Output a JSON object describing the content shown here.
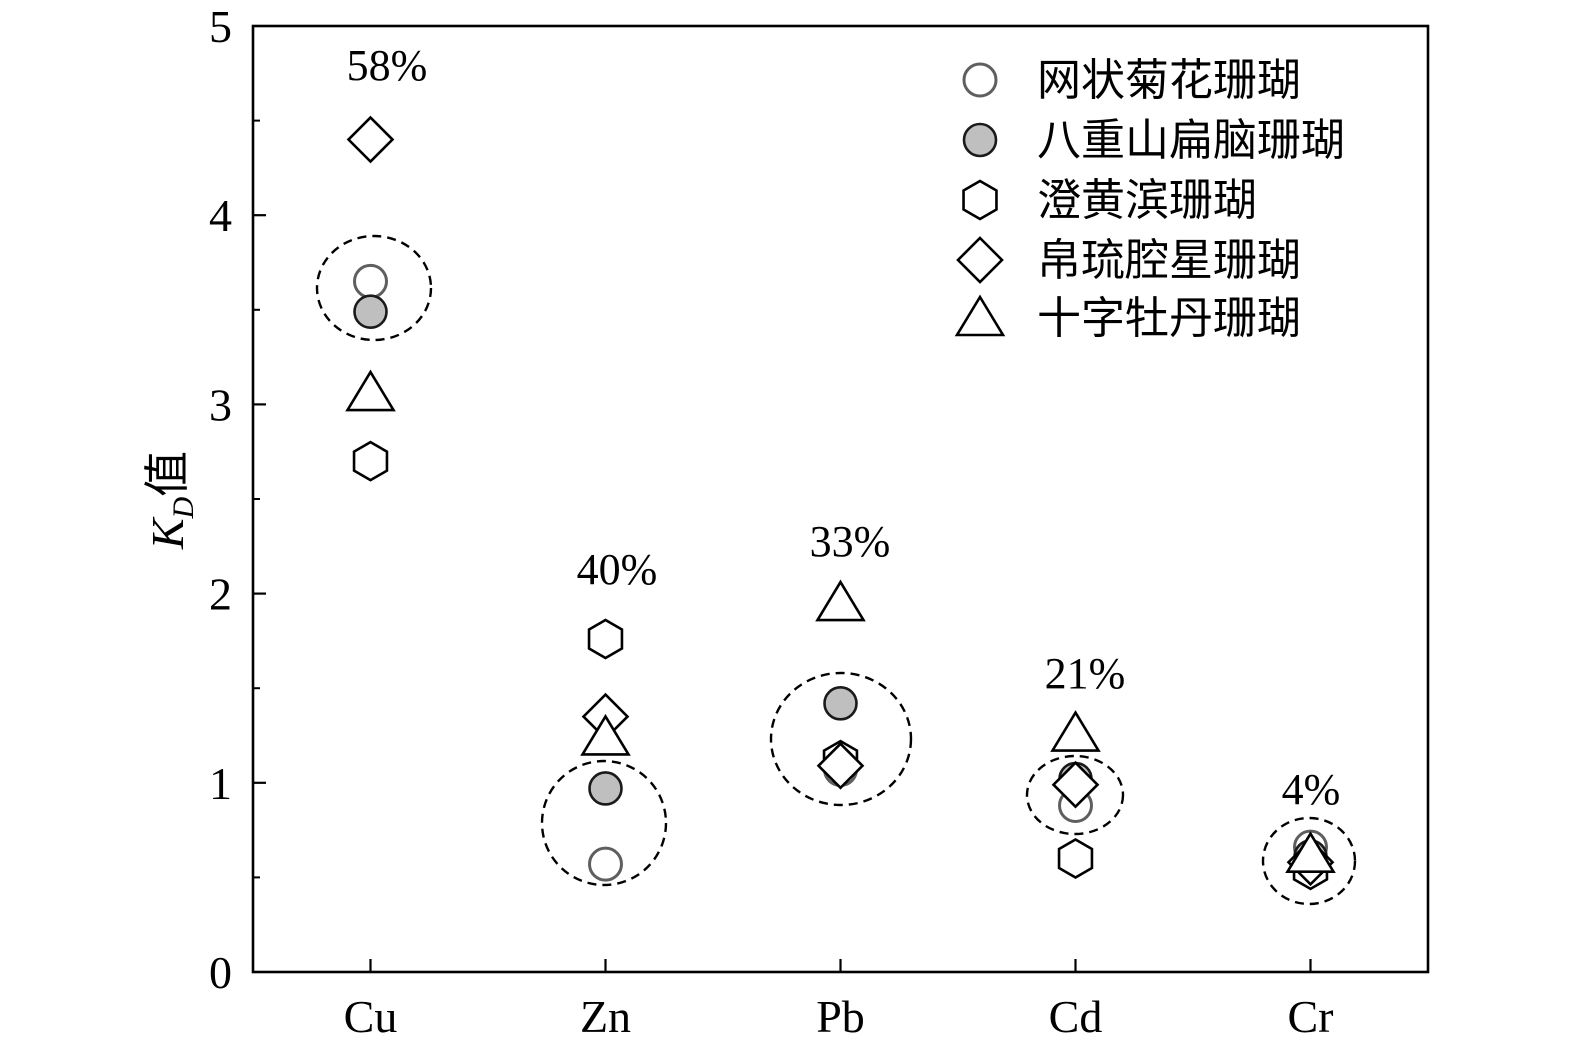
{
  "chart_data": {
    "type": "scatter",
    "title": "",
    "xlabel": "",
    "ylabel": {
      "symbol": "K",
      "subscript": "D",
      "suffix": "值"
    },
    "categories": [
      "Cu",
      "Zn",
      "Pb",
      "Cd",
      "Cr"
    ],
    "ylim": [
      0,
      5
    ],
    "yticks": [
      0,
      1,
      2,
      3,
      4,
      5
    ],
    "grid": false,
    "legend_position": "top-right",
    "series": [
      {
        "name": "网状菊花珊瑚",
        "marker": "circle-open",
        "stroke": "#5f5f5f",
        "fill": "#ffffff",
        "values": [
          3.65,
          0.57,
          1.07,
          0.88,
          0.66
        ]
      },
      {
        "name": "八重山扁脑珊瑚",
        "marker": "circle-filled",
        "stroke": "#1a1a1a",
        "fill": "#bfbfbf",
        "values": [
          3.49,
          0.97,
          1.42,
          1.02,
          0.61
        ]
      },
      {
        "name": "澄黄滨珊瑚",
        "marker": "hexagon",
        "stroke": "#000000",
        "fill": "#ffffff",
        "values": [
          2.7,
          1.76,
          1.12,
          0.6,
          0.54
        ]
      },
      {
        "name": "帛琉腔星珊瑚",
        "marker": "diamond",
        "stroke": "#000000",
        "fill": "#ffffff",
        "values": [
          4.4,
          1.35,
          1.09,
          0.99,
          0.58
        ]
      },
      {
        "name": "十字牡丹珊瑚",
        "marker": "triangle",
        "stroke": "#000000",
        "fill": "#ffffff",
        "values": [
          3.06,
          1.24,
          1.95,
          1.26,
          0.62
        ]
      }
    ],
    "annotations": [
      {
        "category": "Cu",
        "text": "58%"
      },
      {
        "category": "Zn",
        "text": "40%"
      },
      {
        "category": "Pb",
        "text": "33%"
      },
      {
        "category": "Cd",
        "text": "21%"
      },
      {
        "category": "Cr",
        "text": "4%"
      }
    ]
  }
}
